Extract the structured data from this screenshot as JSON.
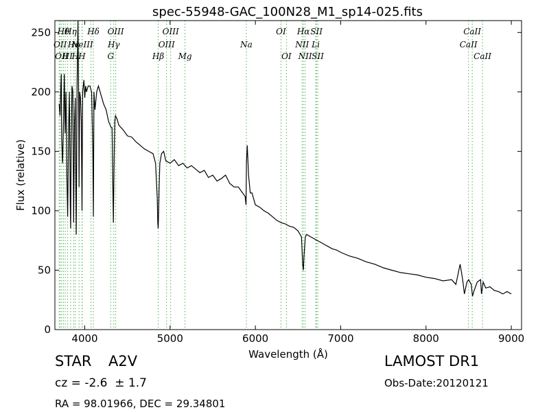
{
  "chart_data": {
    "type": "line",
    "title": "spec-55948-GAC_100N28_M1_sp14-025.fits",
    "xlabel": "Wavelength (Å)",
    "ylabel": "Flux (relative)",
    "xlim": [
      3650,
      9120
    ],
    "ylim": [
      0,
      260
    ],
    "xticks": [
      4000,
      5000,
      6000,
      7000,
      8000,
      9000
    ],
    "yticks": [
      0,
      50,
      100,
      150,
      200,
      250
    ],
    "grid": false,
    "series": [
      {
        "color": "#000000",
        "x": [
          3700,
          3710,
          3720,
          3725,
          3730,
          3740,
          3750,
          3760,
          3770,
          3780,
          3790,
          3800,
          3810,
          3820,
          3830,
          3835,
          3840,
          3850,
          3860,
          3870,
          3880,
          3889,
          3900,
          3910,
          3920,
          3930,
          3933,
          3940,
          3950,
          3960,
          3968,
          3975,
          3990,
          4000,
          4010,
          4020,
          4040,
          4060,
          4080,
          4095,
          4101,
          4108,
          4120,
          4140,
          4160,
          4180,
          4200,
          4220,
          4250,
          4280,
          4310,
          4320,
          4335,
          4340,
          4345,
          4352,
          4360,
          4380,
          4400,
          4450,
          4500,
          4550,
          4600,
          4650,
          4700,
          4750,
          4800,
          4830,
          4850,
          4856,
          4861,
          4866,
          4872,
          4880,
          4900,
          4925,
          4950,
          5000,
          5050,
          5100,
          5150,
          5200,
          5250,
          5300,
          5350,
          5400,
          5450,
          5500,
          5550,
          5600,
          5650,
          5700,
          5750,
          5800,
          5850,
          5880,
          5890,
          5895,
          5905,
          5920,
          5940,
          5960,
          6000,
          6050,
          6100,
          6150,
          6200,
          6250,
          6300,
          6350,
          6400,
          6450,
          6500,
          6540,
          6555,
          6563,
          6570,
          6585,
          6600,
          6650,
          6700,
          6750,
          6800,
          6850,
          6900,
          6950,
          7000,
          7100,
          7200,
          7300,
          7400,
          7500,
          7600,
          7700,
          7800,
          7900,
          8000,
          8100,
          8200,
          8300,
          8350,
          8400,
          8430,
          8450,
          8480,
          8500,
          8530,
          8545,
          8560,
          8600,
          8640,
          8650,
          8670,
          8700,
          8750,
          8800,
          8850,
          8900,
          8950,
          9000
        ],
        "y": [
          190,
          180,
          205,
          215,
          160,
          140,
          170,
          215,
          165,
          200,
          130,
          95,
          165,
          200,
          105,
          85,
          150,
          205,
          200,
          90,
          175,
          195,
          80,
          205,
          260,
          180,
          120,
          200,
          195,
          175,
          100,
          200,
          210,
          195,
          205,
          200,
          205,
          205,
          200,
          150,
          95,
          200,
          185,
          200,
          205,
          200,
          195,
          190,
          185,
          175,
          170,
          170,
          90,
          120,
          145,
          175,
          180,
          177,
          172,
          168,
          163,
          162,
          158,
          155,
          152,
          150,
          148,
          140,
          110,
          90,
          85,
          100,
          120,
          140,
          148,
          150,
          142,
          140,
          143,
          138,
          140,
          136,
          138,
          135,
          132,
          134,
          128,
          130,
          125,
          127,
          130,
          123,
          120,
          120,
          115,
          112,
          105,
          140,
          155,
          130,
          115,
          115,
          105,
          103,
          100,
          98,
          95,
          92,
          90,
          89,
          87,
          86,
          83,
          78,
          55,
          50,
          62,
          78,
          80,
          78,
          76,
          74,
          72,
          70,
          68,
          67,
          65,
          62,
          60,
          57,
          55,
          52,
          50,
          48,
          47,
          46,
          44,
          43,
          41,
          42,
          38,
          55,
          42,
          30,
          40,
          42,
          38,
          28,
          32,
          40,
          42,
          30,
          40,
          35,
          36,
          33,
          32,
          30,
          32,
          30
        ]
      }
    ],
    "lines": [
      {
        "x": 3700,
        "label": ""
      },
      {
        "x": 3712,
        "label": "OII",
        "row": 1
      },
      {
        "x": 3729,
        "label": "OII",
        "row": 2
      },
      {
        "x": 3750,
        "label": "Hθ",
        "row": 0
      },
      {
        "x": 3771,
        "label": "",
        "row": 0
      },
      {
        "x": 3798,
        "label": "HI",
        "row": 2
      },
      {
        "x": 3835,
        "label": "Hη",
        "row": 0
      },
      {
        "x": 3869,
        "label": "Hε",
        "row": 1
      },
      {
        "x": 3889,
        "label": "H",
        "row": 2
      },
      {
        "x": 3933,
        "label": "",
        "row": 0
      },
      {
        "x": 3968,
        "label": "H",
        "row": 2
      },
      {
        "x": 3970,
        "label": "NeIII",
        "row": 1
      },
      {
        "x": 4073,
        "label": "",
        "row": 0
      },
      {
        "x": 4101,
        "label": "Hδ",
        "row": 0
      },
      {
        "x": 4304,
        "label": "G",
        "row": 2
      },
      {
        "x": 4340,
        "label": "Hγ",
        "row": 1
      },
      {
        "x": 4363,
        "label": "OIII",
        "row": 0
      },
      {
        "x": 4861,
        "label": "Hβ",
        "row": 2
      },
      {
        "x": 4959,
        "label": "OIII",
        "row": 1
      },
      {
        "x": 5007,
        "label": "OIII",
        "row": 0
      },
      {
        "x": 5175,
        "label": "Mg",
        "row": 2
      },
      {
        "x": 5894,
        "label": "Na",
        "row": 1
      },
      {
        "x": 6300,
        "label": "OI",
        "row": 0
      },
      {
        "x": 6364,
        "label": "OI",
        "row": 2
      },
      {
        "x": 6548,
        "label": "NII",
        "row": 1
      },
      {
        "x": 6563,
        "label": "Hα",
        "row": 0
      },
      {
        "x": 6583,
        "label": "NII",
        "row": 2
      },
      {
        "x": 6707,
        "label": "Li",
        "row": 1
      },
      {
        "x": 6716,
        "label": "SII",
        "row": 0
      },
      {
        "x": 6731,
        "label": "SII",
        "row": 2
      },
      {
        "x": 8498,
        "label": "CaII",
        "row": 1
      },
      {
        "x": 8542,
        "label": "CaII",
        "row": 0
      },
      {
        "x": 8662,
        "label": "CaII",
        "row": 2
      }
    ]
  },
  "info": {
    "class": "STAR",
    "subclass": "A2V",
    "survey": "LAMOST DR1",
    "cz": "cz = -2.6  ± 1.7",
    "obs_date": "Obs-Date:20120121",
    "coords": "RA = 98.01966, DEC = 29.34801"
  },
  "colors": {
    "spectrum": "#000000",
    "line_markers": "#4caf50"
  }
}
